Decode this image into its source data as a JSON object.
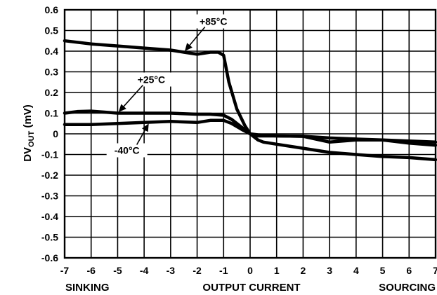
{
  "chart_data": {
    "type": "line",
    "xlabel": "OUTPUT CURRENT",
    "xlabel_left": "SINKING",
    "xlabel_right": "SOURCING",
    "ylabel_main": "DV",
    "ylabel_sub": "OUT",
    "ylabel_unit": " (mV)",
    "xlim": [
      -7,
      7
    ],
    "ylim": [
      -0.6,
      0.6
    ],
    "grid": true,
    "x_ticks": [
      -7,
      -6,
      -5,
      -4,
      -3,
      -2,
      -1,
      0,
      1,
      2,
      3,
      4,
      5,
      6,
      7
    ],
    "x_tick_labels": [
      "-7",
      "-6",
      "-5",
      "-4",
      "-3",
      "-2",
      "-1",
      "0",
      "1",
      "2",
      "3",
      "4",
      "5",
      "6",
      "7"
    ],
    "y_ticks": [
      0.6,
      0.5,
      0.4,
      0.3,
      0.2,
      0.1,
      0,
      -0.1,
      -0.2,
      -0.3,
      -0.4,
      -0.5,
      -0.6
    ],
    "y_tick_labels": [
      "0.6",
      "0.5",
      "0.4",
      "0.3",
      "0.2",
      "0.1",
      "0",
      "-0.1",
      "-0.2",
      "-0.3",
      "-0.4",
      "-0.5",
      "-0.6"
    ],
    "series": [
      {
        "name": "+85°C",
        "x": [
          -7,
          -6,
          -5,
          -4,
          -3,
          -2.5,
          -2,
          -1.5,
          -1.2,
          -1,
          -0.8,
          -0.5,
          -0.2,
          0,
          0.3,
          1,
          2,
          3,
          4,
          5,
          6,
          7
        ],
        "y": [
          0.45,
          0.435,
          0.425,
          0.415,
          0.405,
          0.395,
          0.385,
          0.395,
          0.395,
          0.38,
          0.25,
          0.12,
          0.04,
          0.0,
          -0.005,
          -0.01,
          -0.012,
          -0.02,
          -0.025,
          -0.03,
          -0.045,
          -0.055
        ]
      },
      {
        "name": "+25°C",
        "x": [
          -7,
          -6.5,
          -6,
          -5.5,
          -5,
          -4,
          -3,
          -2,
          -1.5,
          -1,
          -0.7,
          -0.3,
          0,
          0.3,
          1,
          2,
          3,
          4,
          5,
          6,
          7
        ],
        "y": [
          0.1,
          0.108,
          0.11,
          0.105,
          0.1,
          0.1,
          0.1,
          0.095,
          0.095,
          0.09,
          0.07,
          0.03,
          0.0,
          -0.01,
          -0.01,
          -0.012,
          -0.04,
          -0.03,
          -0.03,
          -0.035,
          -0.04
        ]
      },
      {
        "name": "-40°C",
        "x": [
          -7,
          -6,
          -5,
          -4,
          -3,
          -2,
          -1.5,
          -1,
          -0.7,
          -0.3,
          0,
          0.3,
          0.5,
          1,
          2,
          3,
          4,
          5,
          6,
          7
        ],
        "y": [
          0.045,
          0.045,
          0.05,
          0.055,
          0.06,
          0.055,
          0.065,
          0.065,
          0.05,
          0.02,
          0.0,
          -0.03,
          -0.04,
          -0.05,
          -0.07,
          -0.09,
          -0.1,
          -0.11,
          -0.115,
          -0.125
        ]
      }
    ],
    "annotations": [
      {
        "text": "+85°C",
        "series": "+85°C",
        "x": -2.5
      },
      {
        "text": "+25°C",
        "series": "+25°C",
        "x": -5.0
      },
      {
        "text": "-40°C",
        "series": "-40°C",
        "x": -3.8
      }
    ]
  }
}
